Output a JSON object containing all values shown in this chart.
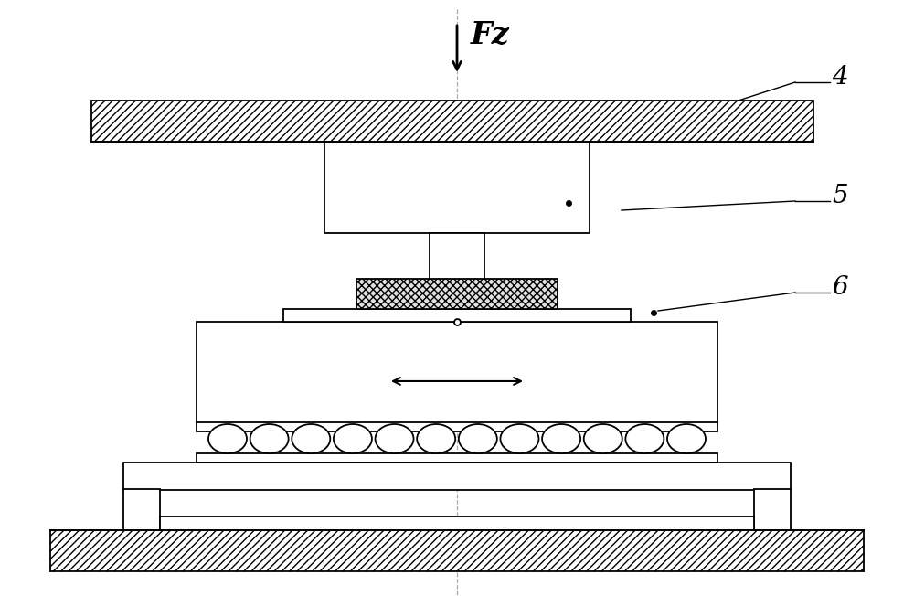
{
  "bg_color": "#ffffff",
  "line_color": "#000000",
  "figure_width": 10.0,
  "figure_height": 6.52,
  "dpi": 100,
  "fz_label": "Fz",
  "label_4": "4",
  "label_5": "5",
  "label_6": "6"
}
